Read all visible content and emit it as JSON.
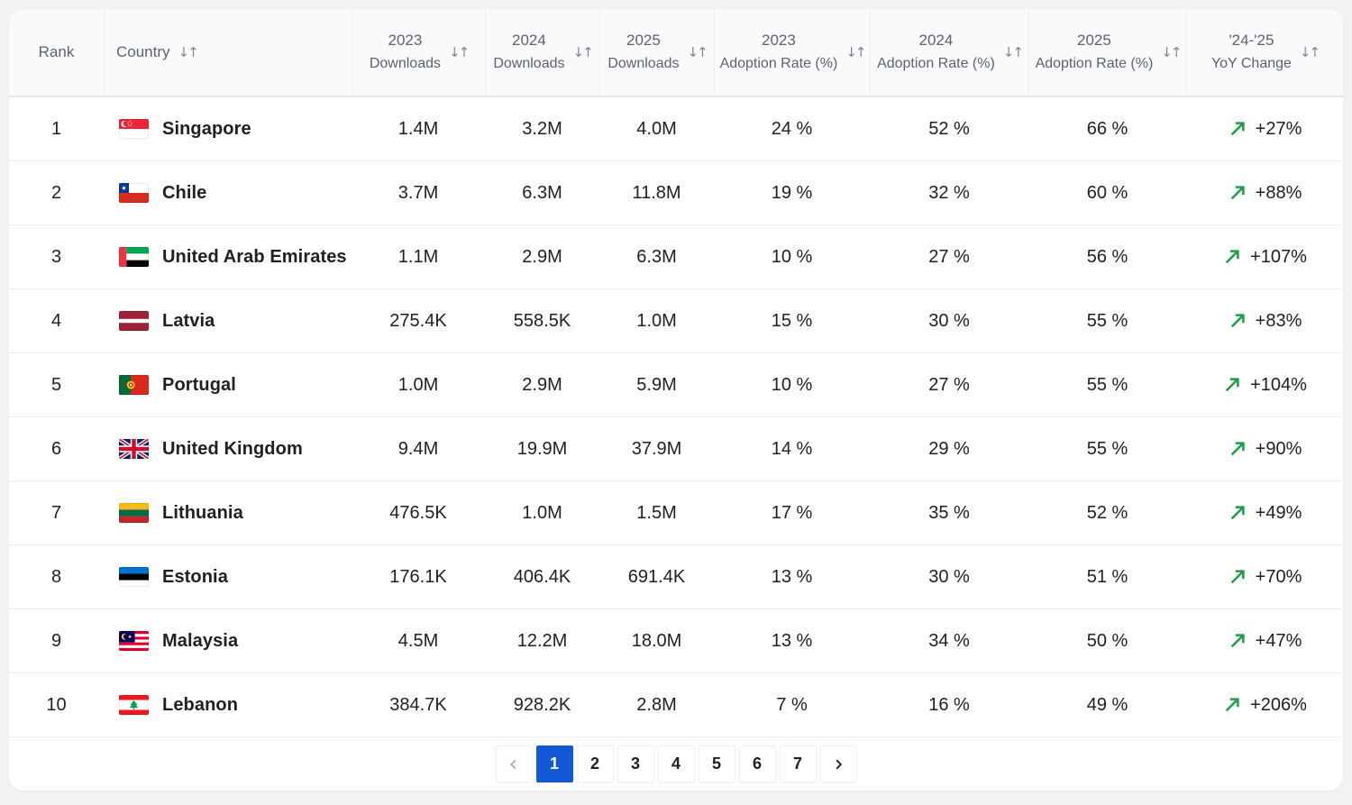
{
  "table": {
    "columns": {
      "rank": {
        "label": "Rank"
      },
      "country": {
        "label": "Country"
      },
      "dl2023": {
        "line1": "2023",
        "line2": "Downloads"
      },
      "dl2024": {
        "line1": "2024",
        "line2": "Downloads"
      },
      "dl2025": {
        "line1": "2025",
        "line2": "Downloads"
      },
      "ar2023": {
        "line1": "2023",
        "line2": "Adoption Rate (%)"
      },
      "ar2024": {
        "line1": "2024",
        "line2": "Adoption Rate (%)"
      },
      "ar2025": {
        "line1": "2025",
        "line2": "Adoption Rate (%)"
      },
      "yoy": {
        "line1": "'24-'25",
        "line2": "YoY Change"
      }
    },
    "rows": [
      {
        "rank": "1",
        "country": "Singapore",
        "flag": "sg",
        "dl2023": "1.4M",
        "dl2024": "3.2M",
        "dl2025": "4.0M",
        "ar2023": "24 %",
        "ar2024": "52 %",
        "ar2025": "66 %",
        "yoy": "+27%"
      },
      {
        "rank": "2",
        "country": "Chile",
        "flag": "cl",
        "dl2023": "3.7M",
        "dl2024": "6.3M",
        "dl2025": "11.8M",
        "ar2023": "19 %",
        "ar2024": "32 %",
        "ar2025": "60 %",
        "yoy": "+88%"
      },
      {
        "rank": "3",
        "country": "United Arab Emirates",
        "flag": "ae",
        "dl2023": "1.1M",
        "dl2024": "2.9M",
        "dl2025": "6.3M",
        "ar2023": "10 %",
        "ar2024": "27 %",
        "ar2025": "56 %",
        "yoy": "+107%"
      },
      {
        "rank": "4",
        "country": "Latvia",
        "flag": "lv",
        "dl2023": "275.4K",
        "dl2024": "558.5K",
        "dl2025": "1.0M",
        "ar2023": "15 %",
        "ar2024": "30 %",
        "ar2025": "55 %",
        "yoy": "+83%"
      },
      {
        "rank": "5",
        "country": "Portugal",
        "flag": "pt",
        "dl2023": "1.0M",
        "dl2024": "2.9M",
        "dl2025": "5.9M",
        "ar2023": "10 %",
        "ar2024": "27 %",
        "ar2025": "55 %",
        "yoy": "+104%"
      },
      {
        "rank": "6",
        "country": "United Kingdom",
        "flag": "gb",
        "dl2023": "9.4M",
        "dl2024": "19.9M",
        "dl2025": "37.9M",
        "ar2023": "14 %",
        "ar2024": "29 %",
        "ar2025": "55 %",
        "yoy": "+90%"
      },
      {
        "rank": "7",
        "country": "Lithuania",
        "flag": "lt",
        "dl2023": "476.5K",
        "dl2024": "1.0M",
        "dl2025": "1.5M",
        "ar2023": "17 %",
        "ar2024": "35 %",
        "ar2025": "52 %",
        "yoy": "+49%"
      },
      {
        "rank": "8",
        "country": "Estonia",
        "flag": "ee",
        "dl2023": "176.1K",
        "dl2024": "406.4K",
        "dl2025": "691.4K",
        "ar2023": "13 %",
        "ar2024": "30 %",
        "ar2025": "51 %",
        "yoy": "+70%"
      },
      {
        "rank": "9",
        "country": "Malaysia",
        "flag": "my",
        "dl2023": "4.5M",
        "dl2024": "12.2M",
        "dl2025": "18.0M",
        "ar2023": "13 %",
        "ar2024": "34 %",
        "ar2025": "50 %",
        "yoy": "+47%"
      },
      {
        "rank": "10",
        "country": "Lebanon",
        "flag": "lb",
        "dl2023": "384.7K",
        "dl2024": "928.2K",
        "dl2025": "2.8M",
        "ar2023": "7 %",
        "ar2024": "16 %",
        "ar2025": "49 %",
        "yoy": "+206%"
      }
    ]
  },
  "icons": {
    "sort": "↓↑",
    "trend_up": "northeast-arrow",
    "prev": "chevron-left",
    "next": "chevron-right"
  },
  "pagination": {
    "pages": [
      "1",
      "2",
      "3",
      "4",
      "5",
      "6",
      "7"
    ],
    "active": "1"
  },
  "colors": {
    "positive_green": "#1e9e4a",
    "active_page_blue": "#1558D6",
    "header_text": "#5f6368",
    "body_text": "#202124"
  }
}
